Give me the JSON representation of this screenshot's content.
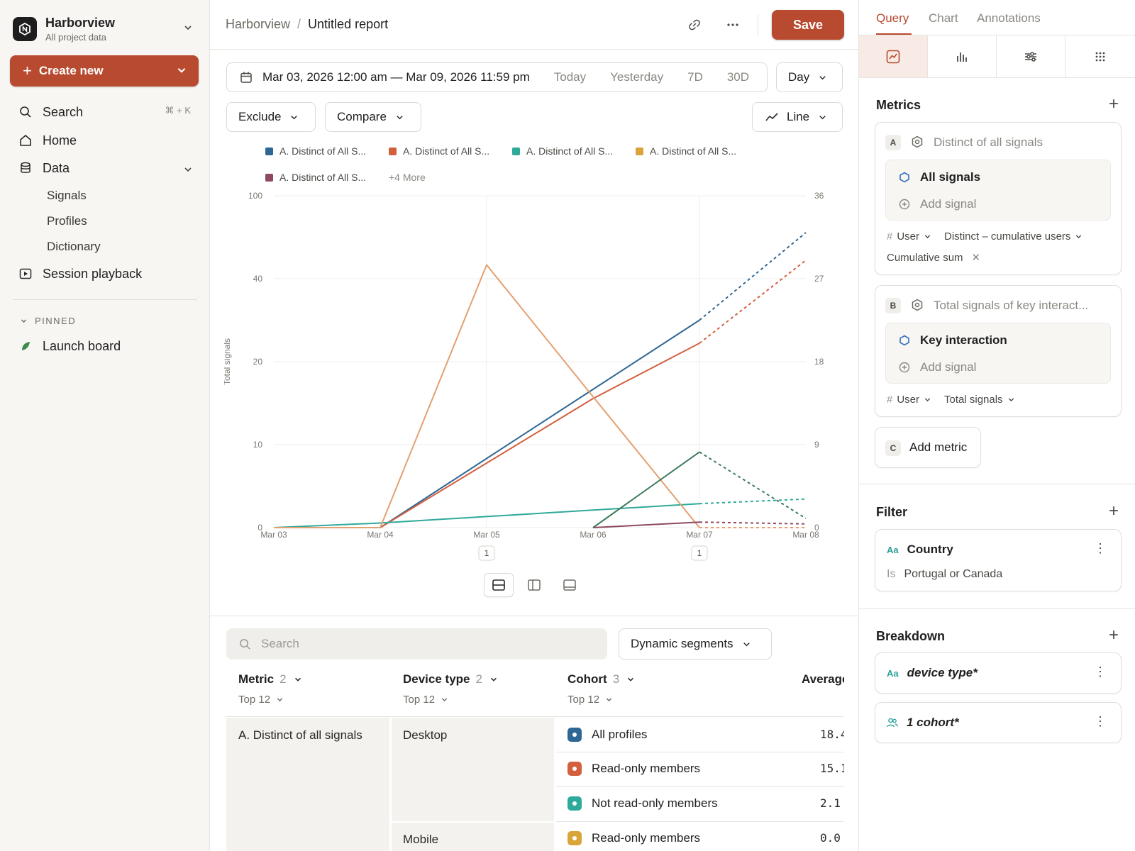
{
  "workspace": {
    "name": "Harborview",
    "subtitle": "All project data"
  },
  "sidebar": {
    "create_label": "Create new",
    "search_label": "Search",
    "search_shortcut": "⌘ + K",
    "home_label": "Home",
    "data_label": "Data",
    "data_children": [
      "Signals",
      "Profiles",
      "Dictionary"
    ],
    "session_label": "Session playback",
    "pinned_heading": "PINNED",
    "pinned_items": [
      "Launch board"
    ]
  },
  "header": {
    "breadcrumb_root": "Harborview",
    "breadcrumb_current": "Untitled report",
    "save_label": "Save"
  },
  "controls": {
    "date_range": "Mar 03, 2026 12:00 am — Mar 09, 2026 11:59 pm",
    "presets": [
      "Today",
      "Yesterday",
      "7D",
      "30D"
    ],
    "granularity": "Day",
    "exclude_label": "Exclude",
    "compare_label": "Compare",
    "chart_type": "Line"
  },
  "legend": {
    "items": [
      {
        "label": "A. Distinct of All S...",
        "color": "#2f6794"
      },
      {
        "label": "A. Distinct of All S...",
        "color": "#d2603f"
      },
      {
        "label": "A. Distinct of All S...",
        "color": "#2fa99a"
      },
      {
        "label": "A. Distinct of All S...",
        "color": "#d9a43a"
      },
      {
        "label": "A. Distinct of All S...",
        "color": "#8e4a63"
      }
    ],
    "more_label": "+4 More"
  },
  "chart_data": {
    "type": "line",
    "ylabel": "Total signals",
    "x": [
      "Mar 03",
      "Mar 04",
      "Mar 05",
      "Mar 06",
      "Mar 07",
      "Mar 08"
    ],
    "y_left_ticks": [
      "0",
      "10",
      "20",
      "40",
      "100"
    ],
    "y_right_ticks": [
      "0",
      "9",
      "18",
      "27",
      "36"
    ],
    "y_right_range": [
      0,
      36
    ],
    "annotation_markers": [
      {
        "x": "Mar 05",
        "label": "1"
      },
      {
        "x": "Mar 07",
        "label": "1"
      }
    ],
    "series": [
      {
        "color": "#2f6794",
        "values": [
          0,
          0,
          7.5,
          15,
          22.5,
          32
        ]
      },
      {
        "color": "#d2603f",
        "values": [
          0,
          0,
          7,
          14,
          20,
          29
        ]
      },
      {
        "color": "#2fa99a",
        "values": [
          0,
          0.5,
          1.2,
          1.9,
          2.6,
          3.1
        ]
      },
      {
        "color": "#e3a070",
        "values": [
          0,
          0,
          28.5,
          14.2,
          0,
          0
        ]
      },
      {
        "color": "#3c7a5a",
        "values": [
          null,
          null,
          null,
          0,
          8.2,
          1
        ]
      },
      {
        "color": "#8e4a63",
        "values": [
          null,
          null,
          null,
          0,
          0.6,
          0.4
        ]
      }
    ],
    "projected_from": "Mar 07",
    "grid": true
  },
  "table": {
    "search_placeholder": "Search",
    "segments_label": "Dynamic segments",
    "columns": [
      {
        "label": "Metric",
        "count": "2",
        "sub": "Top 12"
      },
      {
        "label": "Device type",
        "count": "2",
        "sub": "Top 12"
      },
      {
        "label": "Cohort",
        "count": "3",
        "sub": "Top 12"
      },
      {
        "label": "Average",
        "count": "",
        "sub": ""
      }
    ],
    "metric_value": "A. Distinct of all signals",
    "devices": [
      "Desktop",
      "Mobile"
    ],
    "rows": [
      {
        "cohort": "All profiles",
        "color": "#2f6794",
        "avg": "18.4"
      },
      {
        "cohort": "Read-only members",
        "color": "#d2603f",
        "avg": "15.1"
      },
      {
        "cohort": "Not read-only members",
        "color": "#2fa99a",
        "avg": "2.1"
      },
      {
        "cohort": "Read-only members",
        "color": "#d9a43a",
        "avg": "0.0"
      }
    ]
  },
  "right_panel": {
    "tabs": [
      "Query",
      "Chart",
      "Annotations"
    ],
    "active_tab": "Query",
    "metrics_title": "Metrics",
    "metric_a": {
      "letter": "A",
      "title": "Distinct of all signals",
      "signal": "All signals",
      "add_signal": "Add signal",
      "opt_user": "User",
      "opt_measure": "Distinct – cumulative users",
      "opt_extra": "Cumulative sum"
    },
    "metric_b": {
      "letter": "B",
      "title": "Total signals of key interact...",
      "signal": "Key interaction",
      "add_signal": "Add signal",
      "opt_user": "User",
      "opt_measure": "Total signals"
    },
    "add_metric": {
      "letter": "C",
      "label": "Add metric"
    },
    "filter_title": "Filter",
    "filter": {
      "type": "Aa",
      "property": "Country",
      "op": "Is",
      "value": "Portugal or Canada"
    },
    "breakdown_title": "Breakdown",
    "breakdowns": [
      {
        "type": "Aa",
        "label": "device type*"
      },
      {
        "type": "cohort",
        "label": "1 cohort*"
      }
    ]
  }
}
